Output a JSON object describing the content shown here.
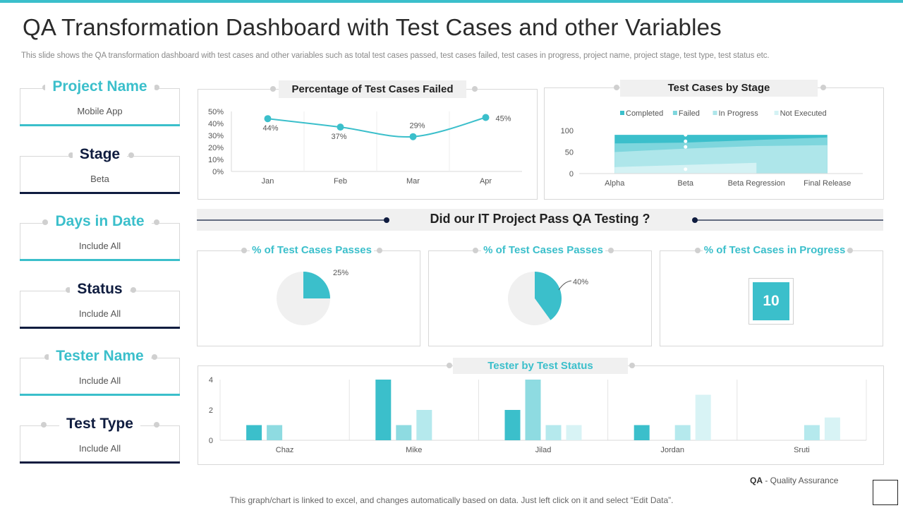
{
  "header": {
    "title": "QA Transformation Dashboard with Test Cases and other Variables",
    "subtitle": "This slide shows the QA transformation dashboard with test cases and other variables such as total test cases passed, test cases failed, test cases in progress, project name, project stage, test type, test status etc."
  },
  "filters": [
    {
      "label": "Project Name",
      "value": "Mobile App",
      "color": "#3bbfcb"
    },
    {
      "label": "Stage",
      "value": "Beta",
      "color": "#0f1c3f"
    },
    {
      "label": "Days in Date",
      "value": "Include All",
      "color": "#3bbfcb"
    },
    {
      "label": "Status",
      "value": "Include All",
      "color": "#0f1c3f"
    },
    {
      "label": "Tester Name",
      "value": "Include All",
      "color": "#3bbfcb"
    },
    {
      "label": "Test Type",
      "value": "Include All",
      "color": "#0f1c3f"
    }
  ],
  "banner": {
    "text": "Did our IT Project Pass QA Testing ?"
  },
  "kpis": [
    {
      "title": "% of Test Cases Passes",
      "label": "25%"
    },
    {
      "title": "% of Test Cases Passes",
      "label": "40%"
    },
    {
      "title": "% of Test Cases in Progress",
      "value": "10"
    }
  ],
  "footer": {
    "note": "This graph/chart is linked to excel,  and changes automatically based on data. Just left click on it and select “Edit Data”.",
    "abbr": "QA",
    "abbr_text": " - Quality Assurance"
  },
  "chart_data": [
    {
      "type": "line",
      "title": "Percentage of Test Cases Failed",
      "categories": [
        "Jan",
        "Feb",
        "Mar",
        "Apr"
      ],
      "values": [
        44,
        37,
        29,
        45
      ],
      "labels": [
        "44%",
        "37%",
        "29%",
        "45%"
      ],
      "yticks": [
        "0%",
        "10%",
        "20%",
        "30%",
        "40%",
        "50%"
      ],
      "ylim": [
        0,
        50
      ],
      "color": "#3bbfcb"
    },
    {
      "type": "area",
      "title": "Test Cases by Stage",
      "categories": [
        "Alpha",
        "Beta",
        "Beta Regression",
        "Final Release"
      ],
      "yticks": [
        "0",
        "50",
        "100"
      ],
      "ylim": [
        0,
        100
      ],
      "series": [
        {
          "name": "Completed",
          "values": [
            90,
            90,
            90,
            90
          ],
          "color": "#3bbfcb"
        },
        {
          "name": "Failed",
          "values": [
            70,
            72,
            78,
            84
          ],
          "color": "#7ed6dd"
        },
        {
          "name": "In Progress",
          "values": [
            50,
            58,
            64,
            66
          ],
          "color": "#aee6ea"
        },
        {
          "name": "Not Executed",
          "values": [
            15,
            20,
            25,
            0
          ],
          "color": "#d4f2f4"
        }
      ]
    },
    {
      "type": "pie",
      "title": "% of Test Cases Passes",
      "values": [
        25,
        75
      ],
      "colors": [
        "#3bbfcb",
        "#f0f0f0"
      ]
    },
    {
      "type": "pie",
      "title": "% of Test Cases Passes",
      "values": [
        40,
        60
      ],
      "colors": [
        "#3bbfcb",
        "#f0f0f0"
      ]
    },
    {
      "type": "bar",
      "title": "Tester by Test Status",
      "categories": [
        "Chaz",
        "Mike",
        "Jilad",
        "Jordan",
        "Sruti"
      ],
      "yticks": [
        "0",
        "2",
        "4"
      ],
      "ylim": [
        0,
        4
      ],
      "series": [
        {
          "name": "Completed",
          "values": [
            1,
            4,
            2,
            1,
            0
          ],
          "color": "#3bbfcb"
        },
        {
          "name": "Failed",
          "values": [
            1,
            1,
            4,
            0,
            0
          ],
          "color": "#8edbe1"
        },
        {
          "name": "In Progress",
          "values": [
            0,
            2,
            1,
            1,
            1
          ],
          "color": "#b5e9ed"
        },
        {
          "name": "Not Executed",
          "values": [
            0,
            0,
            1,
            3,
            1.5
          ],
          "color": "#d8f3f5"
        }
      ]
    }
  ]
}
